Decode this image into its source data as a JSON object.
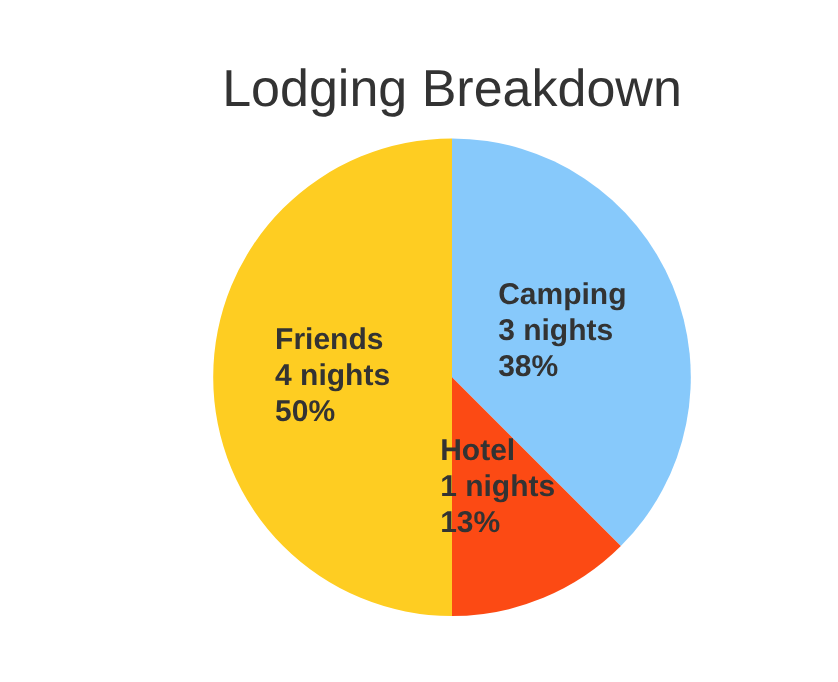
{
  "chart_data": {
    "type": "pie",
    "title": "Lodging Breakdown",
    "categories": [
      "Camping",
      "Hotel",
      "Friends"
    ],
    "values": [
      3,
      1,
      4
    ],
    "colors": [
      "#87c9fb",
      "#fc4a14",
      "#fecd22"
    ],
    "value_labels": [
      "3 nights\n38%",
      "1 nights\n13%",
      "4 nights\n50%"
    ],
    "legend": false
  }
}
